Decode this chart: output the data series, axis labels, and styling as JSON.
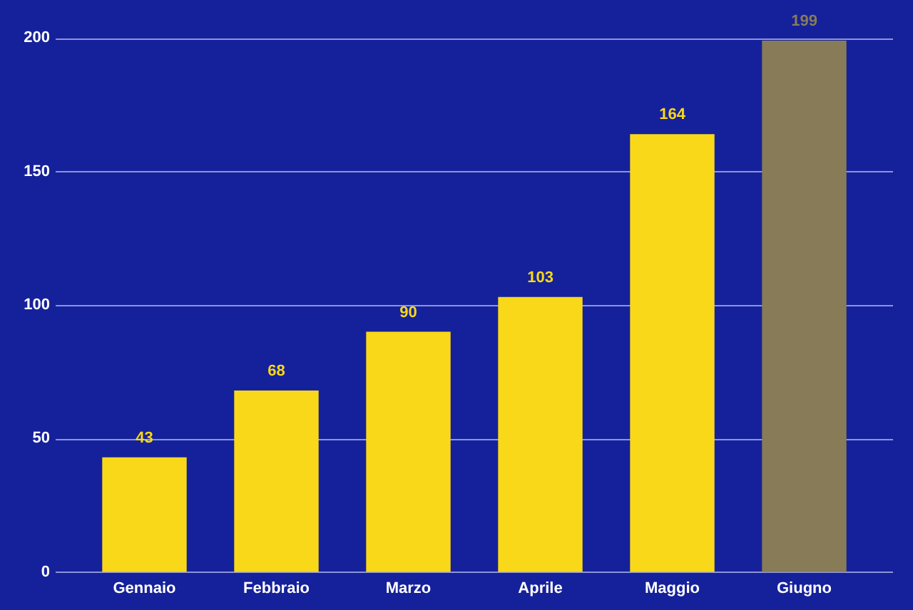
{
  "chart_data": {
    "type": "bar",
    "categories": [
      "Gennaio",
      "Febbraio",
      "Marzo",
      "Aprile",
      "Maggio",
      "Giugno"
    ],
    "values": [
      43,
      68,
      90,
      103,
      164,
      199
    ],
    "colors": [
      "#f9d81a",
      "#f9d81a",
      "#f9d81a",
      "#f9d81a",
      "#f9d81a",
      "#877c57"
    ],
    "ylim": [
      0,
      200
    ],
    "yticks": [
      0,
      50,
      100,
      150,
      200
    ],
    "grid": "y",
    "data_labels": true
  }
}
